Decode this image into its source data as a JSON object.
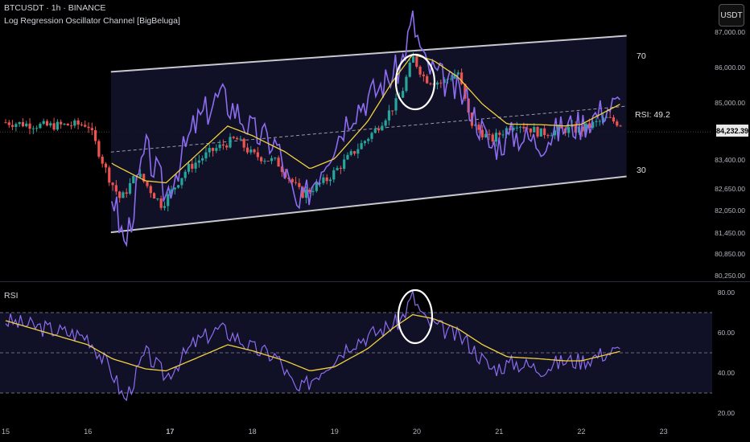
{
  "header": {
    "symbol_line": "BTCUSDT · 1h · BINANCE",
    "indicator_name": "Log Regression Oscillator Channel [BigBeluga]",
    "currency_badge": "USDT"
  },
  "channel_labels": {
    "upper": "70",
    "lower": "30",
    "rsi_prefix": "RSI:",
    "rsi_value": "49.2"
  },
  "current_price": "84,232.39",
  "rsi_pane_title": "RSI",
  "colors": {
    "bull": "#26a69a",
    "bear": "#ef5350",
    "rsi_line": "#8c6cf0",
    "ma_line": "#f0d040",
    "channel": "#c8c8d0",
    "channel_fill": "#12122a",
    "background": "#000000"
  },
  "chart_data": [
    {
      "type": "candlestick",
      "panel": "price",
      "y_ticks": [
        "87,000.00",
        "86,000.00",
        "85,000.00",
        "84,232.39",
        "83,400.00",
        "82,650.00",
        "82,050.00",
        "81,450.00",
        "80,850.00",
        "80,250.00"
      ],
      "x_ticks": [
        "15",
        "16",
        "17",
        "18",
        "19",
        "20",
        "21",
        "22",
        "23"
      ],
      "channel": {
        "upper_start": 85900,
        "upper_end": 86900,
        "lower_start": 81450,
        "lower_end": 83000
      },
      "close_keypoints": [
        [
          15.0,
          84500
        ],
        [
          15.5,
          84400
        ],
        [
          16.0,
          84450
        ],
        [
          16.25,
          83000
        ],
        [
          16.4,
          82350
        ],
        [
          16.6,
          83100
        ],
        [
          16.9,
          82200
        ],
        [
          17.2,
          83200
        ],
        [
          17.5,
          83700
        ],
        [
          17.8,
          84050
        ],
        [
          18.0,
          83600
        ],
        [
          18.3,
          83400
        ],
        [
          18.6,
          82500
        ],
        [
          18.9,
          82900
        ],
        [
          19.2,
          83600
        ],
        [
          19.5,
          84300
        ],
        [
          19.8,
          85200
        ],
        [
          19.95,
          86300
        ],
        [
          20.1,
          85700
        ],
        [
          20.3,
          85600
        ],
        [
          20.5,
          85900
        ],
        [
          20.65,
          84500
        ],
        [
          20.9,
          84000
        ],
        [
          21.2,
          84500
        ],
        [
          21.5,
          84200
        ],
        [
          21.8,
          84300
        ],
        [
          22.0,
          84300
        ],
        [
          22.3,
          84600
        ],
        [
          22.5,
          84450
        ]
      ]
    },
    {
      "type": "line",
      "panel": "rsi",
      "y_ticks": [
        "80.00",
        "60.00",
        "40.00",
        "20.00"
      ],
      "levels": [
        70,
        50,
        30
      ],
      "series": [
        {
          "name": "",
          "values_keypoints": [
            [
              15.0,
              66
            ],
            [
              15.5,
              62
            ],
            [
              16.0,
              58
            ],
            [
              16.3,
              40
            ],
            [
              16.45,
              26
            ],
            [
              16.7,
              50
            ],
            [
              16.95,
              38
            ],
            [
              17.3,
              55
            ],
            [
              17.6,
              62
            ],
            [
              17.8,
              58
            ],
            [
              18.0,
              52
            ],
            [
              18.3,
              48
            ],
            [
              18.55,
              30
            ],
            [
              18.9,
              44
            ],
            [
              19.2,
              55
            ],
            [
              19.5,
              60
            ],
            [
              19.8,
              66
            ],
            [
              19.95,
              78
            ],
            [
              20.1,
              66
            ],
            [
              20.3,
              62
            ],
            [
              20.6,
              56
            ],
            [
              20.9,
              42
            ],
            [
              21.2,
              45
            ],
            [
              21.5,
              42
            ],
            [
              21.8,
              46
            ],
            [
              22.0,
              46
            ],
            [
              22.3,
              50
            ],
            [
              22.5,
              51
            ]
          ]
        },
        {
          "name": "",
          "values_keypoints": [
            [
              15.0,
              66
            ],
            [
              15.5,
              60
            ],
            [
              16.0,
              54
            ],
            [
              16.3,
              47
            ],
            [
              16.7,
              42
            ],
            [
              16.95,
              41
            ],
            [
              17.3,
              47
            ],
            [
              17.7,
              54
            ],
            [
              18.0,
              51
            ],
            [
              18.4,
              46
            ],
            [
              18.7,
              41
            ],
            [
              19.0,
              43
            ],
            [
              19.4,
              52
            ],
            [
              19.7,
              62
            ],
            [
              19.95,
              69
            ],
            [
              20.2,
              67
            ],
            [
              20.5,
              62
            ],
            [
              20.8,
              54
            ],
            [
              21.1,
              48
            ],
            [
              21.5,
              47
            ],
            [
              21.8,
              46
            ],
            [
              22.0,
              46
            ],
            [
              22.3,
              49
            ],
            [
              22.5,
              51
            ]
          ]
        }
      ]
    }
  ]
}
